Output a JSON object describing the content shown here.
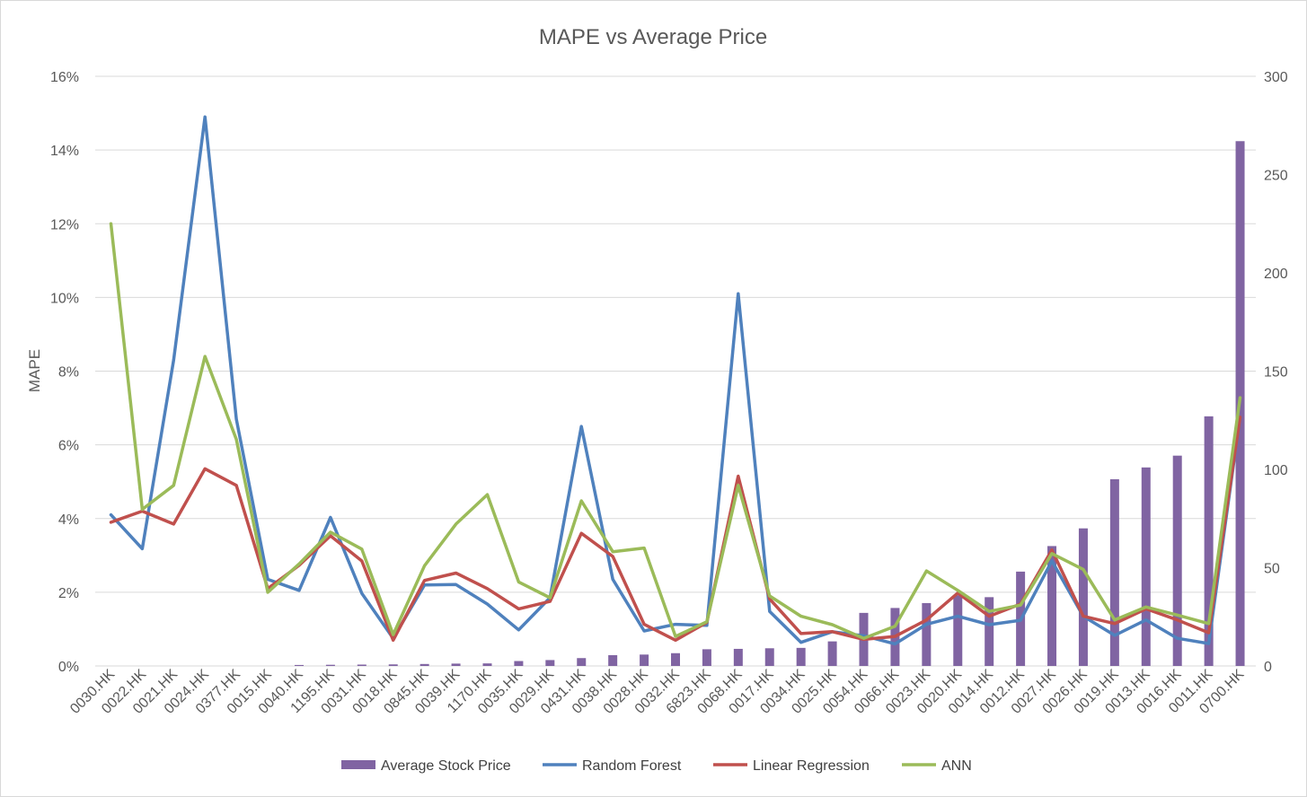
{
  "chart_data": {
    "type": "bar+line",
    "title": "MAPE vs Average Price",
    "ylabel": "MAPE",
    "y2label": "",
    "ylim": [
      0,
      0.16
    ],
    "y2lim": [
      0,
      300
    ],
    "yticks": [
      "0%",
      "2%",
      "4%",
      "6%",
      "8%",
      "10%",
      "12%",
      "14%",
      "16%"
    ],
    "y2ticks": [
      "0",
      "50",
      "100",
      "150",
      "200",
      "250",
      "300"
    ],
    "grid": true,
    "legend_position": "bottom",
    "categories": [
      "0030.HK",
      "0022.HK",
      "0021.HK",
      "0024.HK",
      "0377.HK",
      "0015.HK",
      "0040.HK",
      "1195.HK",
      "0031.HK",
      "0018.HK",
      "0845.HK",
      "0039.HK",
      "1170.HK",
      "0035.HK",
      "0029.HK",
      "0431.HK",
      "0038.HK",
      "0028.HK",
      "0032.HK",
      "6823.HK",
      "0068.HK",
      "0017.HK",
      "0034.HK",
      "0025.HK",
      "0054.HK",
      "0066.HK",
      "0023.HK",
      "0020.HK",
      "0014.HK",
      "0012.HK",
      "0027.HK",
      "0026.HK",
      "0019.HK",
      "0013.HK",
      "0016.HK",
      "0011.HK",
      "0700.HK"
    ],
    "bars": {
      "name": "Average Stock Price",
      "axis": "right",
      "color": "#8064a2",
      "values": [
        0,
        0,
        0,
        0,
        0,
        0,
        0.5,
        0.6,
        0.7,
        0.8,
        1,
        1.2,
        1.3,
        2.5,
        3,
        4,
        5.5,
        5.8,
        6.5,
        8.5,
        8.7,
        9,
        9.2,
        12.5,
        27,
        29.5,
        32,
        36,
        35,
        48,
        61,
        70,
        95,
        101,
        107,
        127,
        267
      ]
    },
    "series": [
      {
        "name": "Random Forest",
        "axis": "left",
        "color": "#4f81bd",
        "values": [
          0.041,
          0.0318,
          0.083,
          0.149,
          0.067,
          0.0235,
          0.0205,
          0.0403,
          0.0197,
          0.0075,
          0.022,
          0.0221,
          0.0168,
          0.0098,
          0.0185,
          0.065,
          0.0235,
          0.0095,
          0.0113,
          0.011,
          0.101,
          0.0148,
          0.0064,
          0.0093,
          0.0082,
          0.006,
          0.0113,
          0.0135,
          0.0112,
          0.0124,
          0.0285,
          0.0135,
          0.0083,
          0.0125,
          0.0075,
          0.0061,
          0.0675
        ]
      },
      {
        "name": "Linear Regression",
        "axis": "left",
        "color": "#c0504d",
        "values": [
          0.039,
          0.042,
          0.0385,
          0.0535,
          0.049,
          0.021,
          0.0273,
          0.0353,
          0.0285,
          0.007,
          0.0232,
          0.0252,
          0.021,
          0.0155,
          0.0175,
          0.036,
          0.0297,
          0.0113,
          0.007,
          0.0118,
          0.0515,
          0.0182,
          0.0088,
          0.0093,
          0.0072,
          0.008,
          0.0125,
          0.0198,
          0.0135,
          0.0168,
          0.0315,
          0.0135,
          0.0115,
          0.0155,
          0.0125,
          0.009,
          0.0675
        ]
      },
      {
        "name": "ANN",
        "axis": "left",
        "color": "#9bbb59",
        "values": [
          0.12,
          0.0425,
          0.049,
          0.084,
          0.0615,
          0.02,
          0.0277,
          0.0363,
          0.0317,
          0.0085,
          0.0272,
          0.0385,
          0.0465,
          0.0228,
          0.0185,
          0.0448,
          0.031,
          0.032,
          0.008,
          0.012,
          0.049,
          0.019,
          0.0135,
          0.0112,
          0.0075,
          0.0108,
          0.0258,
          0.0205,
          0.0148,
          0.0165,
          0.0305,
          0.0262,
          0.0125,
          0.016,
          0.0138,
          0.0115,
          0.0728
        ]
      }
    ]
  }
}
